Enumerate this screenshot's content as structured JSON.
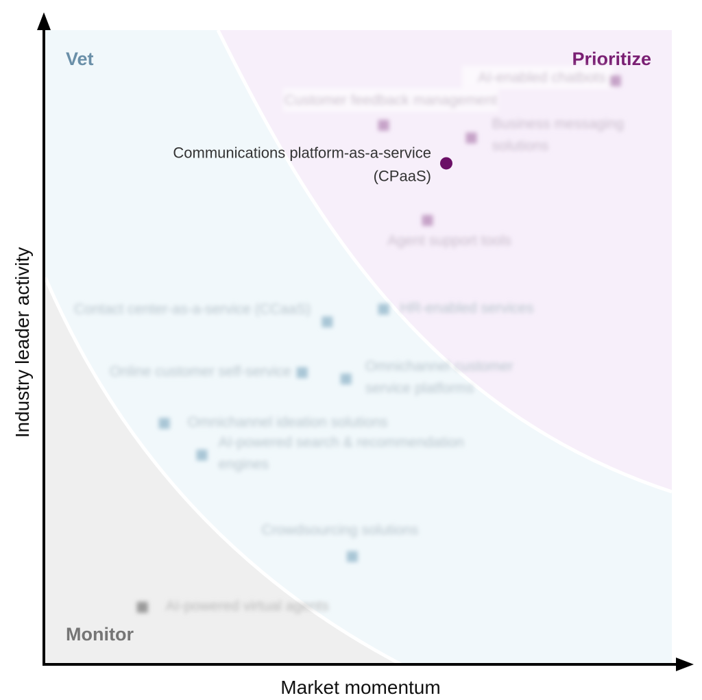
{
  "chart_data": {
    "type": "scatter",
    "xlabel": "Market momentum",
    "ylabel": "Industry leader activity",
    "zones": [
      {
        "name": "Vet",
        "color": "#6a8fa8"
      },
      {
        "name": "Prioritize",
        "color": "#7a1f73"
      },
      {
        "name": "Monitor",
        "color": "#757575"
      }
    ],
    "points": [
      {
        "label": "AI-enabled chatbots",
        "x": 0.91,
        "y": 0.92,
        "zone": "Prioritize",
        "blurred": true
      },
      {
        "label": "Customer feedback management",
        "x": 0.54,
        "y": 0.85,
        "zone": "Prioritize",
        "blurred": true
      },
      {
        "label": "Business messaging solutions",
        "x": 0.68,
        "y": 0.83,
        "zone": "Prioritize",
        "blurred": true
      },
      {
        "label": "Communications platform-as-a-service (CPaaS)",
        "x": 0.64,
        "y": 0.79,
        "zone": "Prioritize",
        "blurred": false
      },
      {
        "label": "Agent support tools",
        "x": 0.61,
        "y": 0.7,
        "zone": "Prioritize",
        "blurred": true
      },
      {
        "label": "HR-enabled services",
        "x": 0.54,
        "y": 0.56,
        "zone": "Vet",
        "blurred": true
      },
      {
        "label": "Contact center-as-a-service (CCaaS)",
        "x": 0.45,
        "y": 0.54,
        "zone": "Vet",
        "blurred": true
      },
      {
        "label": "Online customer self-service",
        "x": 0.41,
        "y": 0.46,
        "zone": "Vet",
        "blurred": true
      },
      {
        "label": "Omnichannel customer service platforms",
        "x": 0.48,
        "y": 0.45,
        "zone": "Vet",
        "blurred": true
      },
      {
        "label": "Omnichannel ideation solutions",
        "x": 0.19,
        "y": 0.38,
        "zone": "Vet",
        "blurred": true
      },
      {
        "label": "AI-powered search & recommendation engines",
        "x": 0.25,
        "y": 0.33,
        "zone": "Vet",
        "blurred": true
      },
      {
        "label": "Crowdsourcing solutions",
        "x": 0.49,
        "y": 0.17,
        "zone": "Vet",
        "blurred": true
      },
      {
        "label": "AI-powered virtual agents",
        "x": 0.155,
        "y": 0.09,
        "zone": "Monitor",
        "blurred": true
      }
    ]
  }
}
